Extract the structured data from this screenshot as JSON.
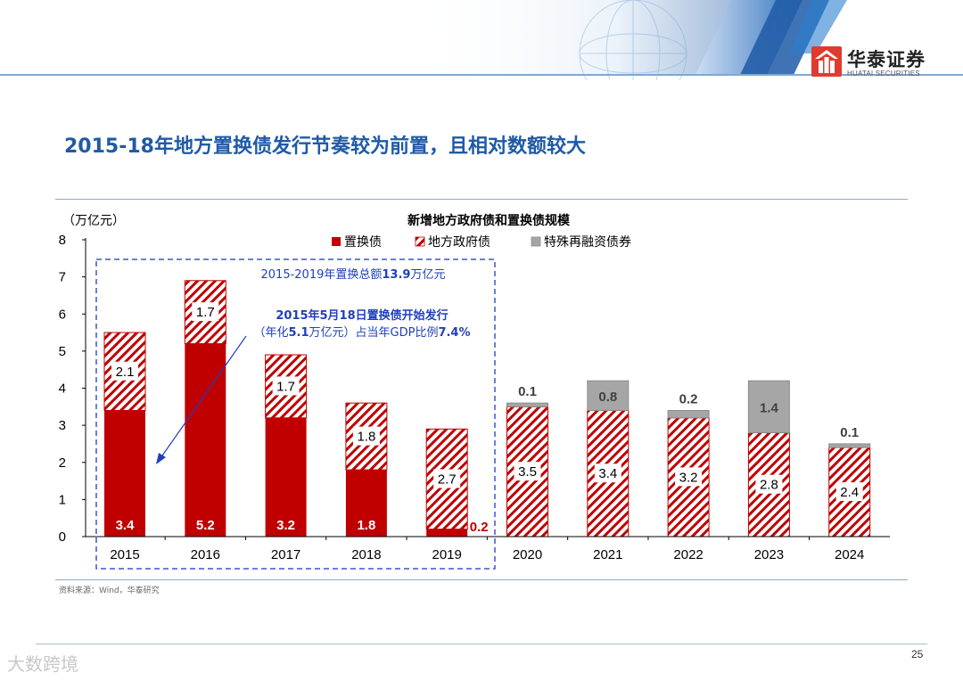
{
  "brand": {
    "name_cn": "华泰证券",
    "name_en": "HUATAI SECURITIES",
    "colors": {
      "primary": "#1f5aa6",
      "logo_red": "#e03a2f",
      "bar_red": "#c00000",
      "hatch_red": "#c00000",
      "gray": "#a6a6a6"
    }
  },
  "page": {
    "title": "2015-18年地方置换债发行节奏较为前置，且相对数额较大",
    "source": "资料来源：Wind，华泰研究",
    "page_number": "25",
    "watermark": "大数跨境"
  },
  "chart_data": {
    "type": "bar",
    "stacked": true,
    "title": "新增地方政府债和置换债规模",
    "unit_label": "（万亿元）",
    "categories": [
      "2015",
      "2016",
      "2017",
      "2018",
      "2019",
      "2020",
      "2021",
      "2022",
      "2023",
      "2024"
    ],
    "series": [
      {
        "name": "置换债",
        "style": "solid-red",
        "values": [
          3.4,
          5.2,
          3.2,
          1.8,
          0.2,
          0,
          0,
          0,
          0,
          0
        ],
        "labels": [
          "3.4",
          "5.2",
          "3.2",
          "1.8",
          "0.2",
          "",
          "",
          "",
          "",
          ""
        ]
      },
      {
        "name": "地方政府债",
        "style": "hatched-red",
        "values": [
          2.1,
          1.7,
          1.7,
          1.8,
          2.7,
          3.5,
          3.4,
          3.2,
          2.8,
          2.4
        ],
        "labels": [
          "2.1",
          "1.7",
          "1.7",
          "1.8",
          "2.7",
          "3.5",
          "3.4",
          "3.2",
          "2.8",
          "2.4"
        ]
      },
      {
        "name": "特殊再融资债券",
        "style": "gray",
        "values": [
          0,
          0,
          0,
          0,
          0,
          0.1,
          0.8,
          0.2,
          1.4,
          0.1
        ],
        "labels": [
          "",
          "",
          "",
          "",
          "",
          "0.1",
          "0.8",
          "0.2",
          "1.4",
          "0.1"
        ]
      }
    ],
    "y_axis": {
      "min": 0,
      "max": 8,
      "ticks": [
        "0",
        "1",
        "2",
        "3",
        "4",
        "5",
        "6",
        "7",
        "8"
      ]
    },
    "annotations": {
      "box_text_prefix": "2015-2019年置换总额",
      "box_text_value": "13.9",
      "box_text_suffix": "万亿元",
      "arrow_line1": "2015年5月18日置换债开始发行",
      "arrow_line2_a": "（年化",
      "arrow_line2_b": "5.1",
      "arrow_line2_c": "万亿元）占当年GDP比例",
      "arrow_line2_d": "7.4%"
    }
  }
}
